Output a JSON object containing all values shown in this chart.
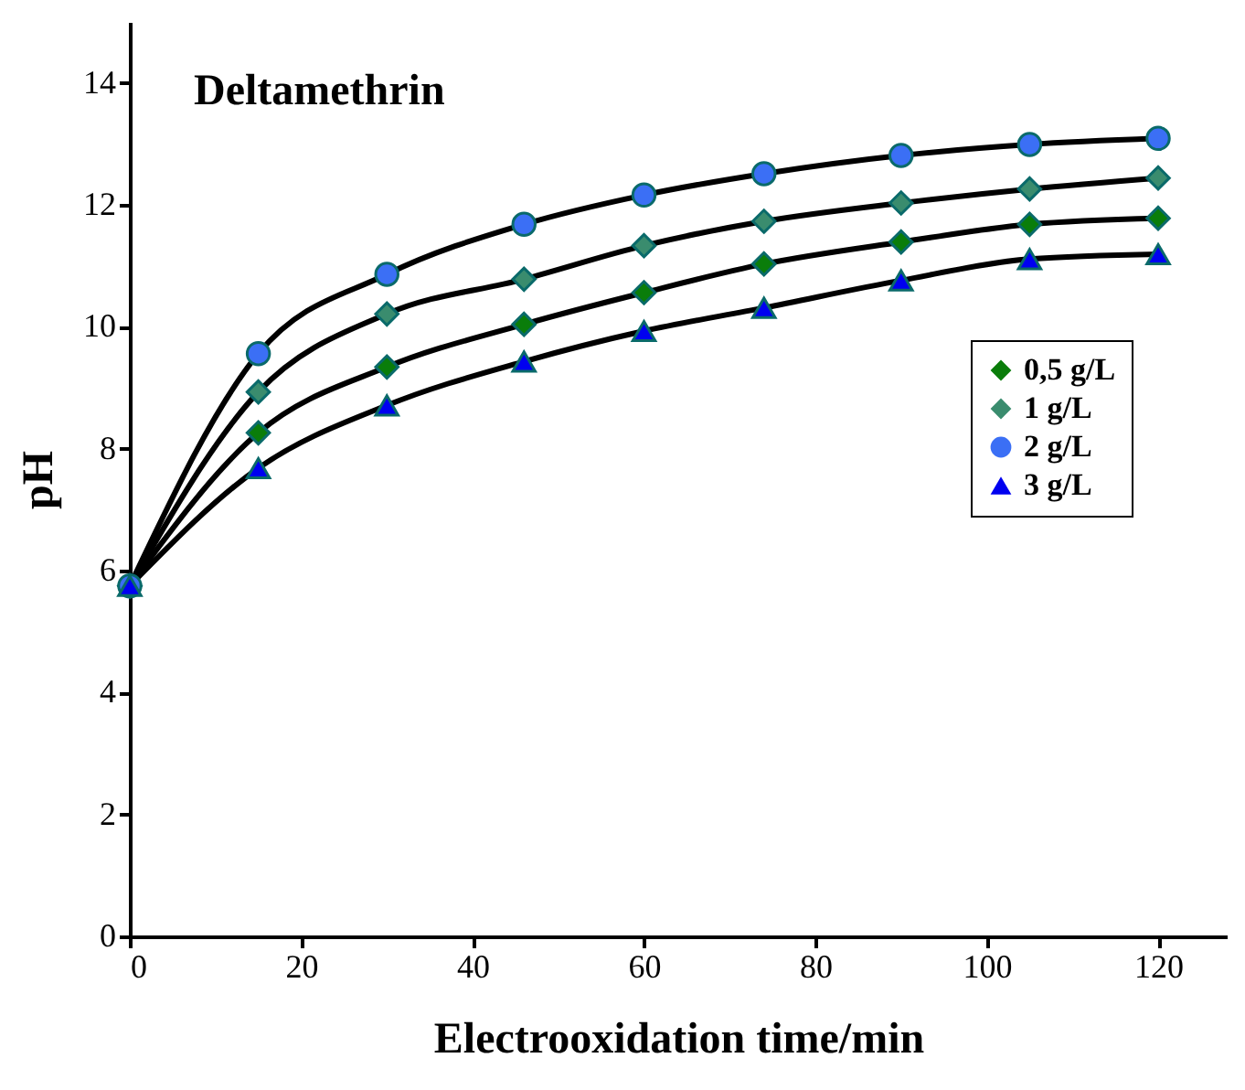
{
  "chart_data": {
    "type": "line",
    "title": "Deltamethrin",
    "xlabel": "Electrooxidation time/min",
    "ylabel": "pH",
    "x": [
      0,
      15,
      30,
      46,
      60,
      74,
      90,
      105,
      120
    ],
    "xlim": [
      0,
      128
    ],
    "xticks": [
      0,
      20,
      40,
      60,
      80,
      100,
      120
    ],
    "ylim": [
      0,
      15
    ],
    "yticks": [
      0,
      2,
      4,
      6,
      8,
      10,
      12,
      14
    ],
    "legend": "right",
    "line_style": "solid",
    "series": [
      {
        "name": "0,5 g/L",
        "color": "#0a7d0a",
        "marker": "diamond",
        "values": [
          5.75,
          8.26,
          9.34,
          10.04,
          10.56,
          11.03,
          11.39,
          11.68,
          11.78
        ]
      },
      {
        "name": "1 g/L",
        "color": "#3a8c6e",
        "marker": "diamond",
        "values": [
          5.75,
          8.93,
          10.21,
          10.78,
          11.33,
          11.73,
          12.03,
          12.26,
          12.44
        ]
      },
      {
        "name": "2 g/L",
        "color": "#3b6ff5",
        "marker": "circle",
        "values": [
          5.75,
          9.56,
          10.86,
          11.68,
          12.16,
          12.51,
          12.81,
          12.99,
          13.09
        ]
      },
      {
        "name": "3 g/L",
        "color": "#0000f0",
        "marker": "triangle",
        "values": [
          5.75,
          7.68,
          8.71,
          9.43,
          9.93,
          10.31,
          10.76,
          11.11,
          11.19
        ]
      }
    ]
  }
}
